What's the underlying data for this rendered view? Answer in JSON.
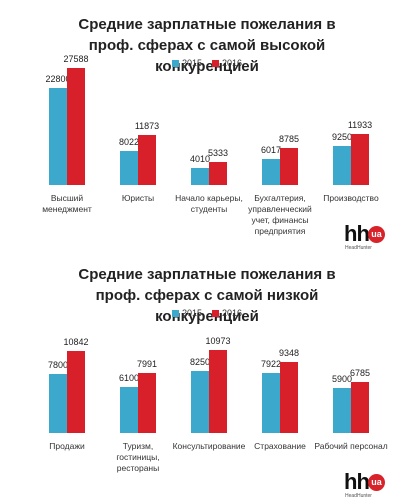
{
  "chart_data": [
    {
      "type": "bar",
      "title": "Средние зарплатные пожелания в проф. сферах с самой высокой конкуренцией",
      "categories": [
        "Высший менеджмент",
        "Юристы",
        "Начало карьеры, студенты",
        "Бухгалтерия, управленческий учет, финансы предприятия",
        "Производство"
      ],
      "series": [
        {
          "name": "2015",
          "color": "#3ba8cc",
          "values": [
            22800,
            8022,
            4010,
            6017,
            9250
          ]
        },
        {
          "name": "2016",
          "color": "#d7202a",
          "values": [
            27588,
            11873,
            5333,
            8785,
            11933
          ]
        }
      ],
      "logo": {
        "main": "hh",
        "badge": "ua",
        "caption": "HeadHunter"
      }
    },
    {
      "type": "bar",
      "title": "Средние зарплатные пожелания в проф. сферах с самой низкой конкуренцией",
      "categories": [
        "Продажи",
        "Туризм, гостиницы, рестораны",
        "Консультирование",
        "Страхование",
        "Рабочий персонал"
      ],
      "series": [
        {
          "name": "2015",
          "color": "#3ba8cc",
          "values": [
            7800,
            6100,
            8250,
            7922,
            5900
          ]
        },
        {
          "name": "2016",
          "color": "#d7202a",
          "values": [
            10842,
            7991,
            10973,
            9348,
            6785
          ]
        }
      ],
      "logo": {
        "main": "hh",
        "badge": "ua",
        "caption": "HeadHunter"
      }
    }
  ]
}
